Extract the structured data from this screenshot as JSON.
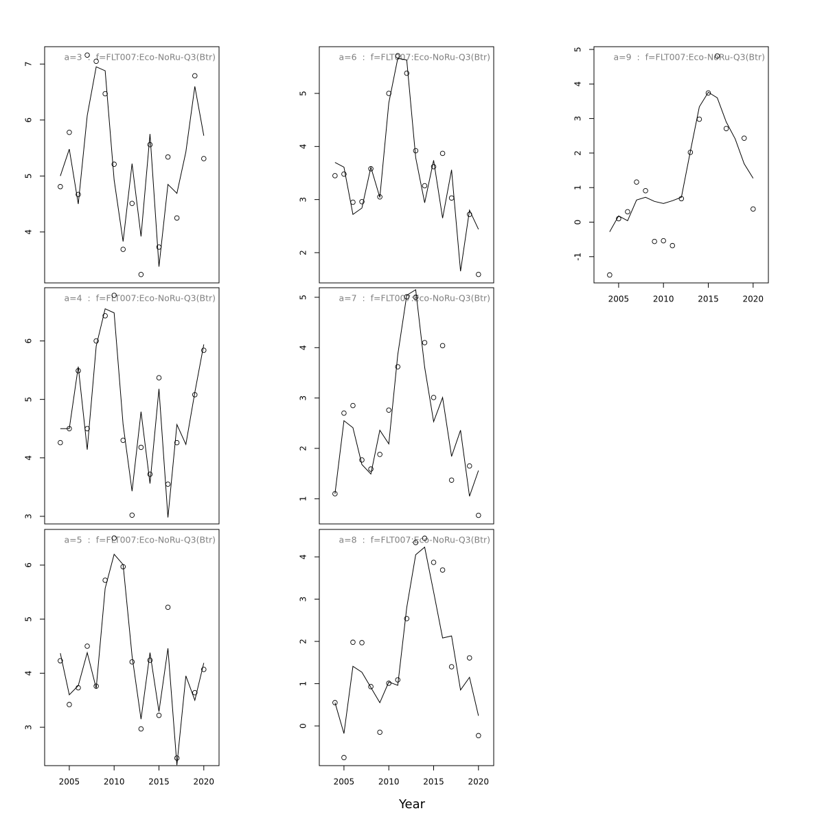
{
  "x_label": "Year",
  "chart_data": [
    {
      "type": "line",
      "title": "a=3  :  f=FLT007:Eco-NoRu-Q3(Btr)",
      "x": [
        2004,
        2005,
        2006,
        2007,
        2008,
        2009,
        2010,
        2011,
        2012,
        2013,
        2014,
        2015,
        2016,
        2017,
        2018,
        2019,
        2020
      ],
      "series": [
        {
          "style": "line",
          "color": "#000000",
          "values": [
            5.0,
            5.48,
            4.5,
            6.08,
            6.95,
            6.88,
            4.93,
            3.83,
            5.22,
            3.92,
            5.75,
            3.38,
            4.85,
            4.69,
            5.43,
            6.6,
            5.72
          ]
        },
        {
          "style": "points",
          "color": "#000000",
          "values": [
            4.81,
            5.78,
            4.67,
            7.16,
            7.05,
            6.47,
            5.21,
            3.69,
            4.51,
            3.24,
            5.56,
            3.73,
            5.34,
            4.25,
            null,
            6.79,
            5.31
          ]
        }
      ],
      "xlim": [
        2002.25,
        2021.7
      ],
      "xticks": [
        2005,
        2010,
        2015,
        2020
      ],
      "show_xaxis": false,
      "ylim": [
        3.09,
        7.31
      ],
      "yticks": [
        4,
        5,
        6,
        7
      ]
    },
    {
      "type": "line",
      "title": "a=4  :  f=FLT007:Eco-NoRu-Q3(Btr)",
      "x": [
        2004,
        2005,
        2006,
        2007,
        2008,
        2009,
        2010,
        2011,
        2012,
        2013,
        2014,
        2015,
        2016,
        2017,
        2018,
        2019,
        2020
      ],
      "series": [
        {
          "style": "line",
          "color": "#000000",
          "values": [
            4.5,
            4.5,
            5.56,
            4.14,
            5.91,
            6.55,
            6.48,
            4.57,
            3.43,
            4.79,
            3.56,
            5.18,
            2.98,
            4.57,
            4.23,
            5.12,
            5.94
          ]
        },
        {
          "style": "points",
          "color": "#000000",
          "values": [
            4.26,
            4.5,
            5.49,
            4.5,
            6.0,
            6.43,
            6.78,
            4.3,
            3.02,
            4.18,
            3.72,
            5.37,
            3.55,
            4.26,
            null,
            5.08,
            5.84
          ]
        }
      ],
      "xlim": [
        2002.25,
        2021.7
      ],
      "xticks": [
        2005,
        2010,
        2015,
        2020
      ],
      "show_xaxis": false,
      "ylim": [
        2.87,
        6.91
      ],
      "yticks": [
        3,
        4,
        5,
        6
      ]
    },
    {
      "type": "line",
      "title": "a=5  :  f=FLT007:Eco-NoRu-Q3(Btr)",
      "x": [
        2004,
        2005,
        2006,
        2007,
        2008,
        2009,
        2010,
        2011,
        2012,
        2013,
        2014,
        2015,
        2016,
        2017,
        2018,
        2019,
        2020
      ],
      "series": [
        {
          "style": "line",
          "color": "#000000",
          "values": [
            4.37,
            3.6,
            3.77,
            4.38,
            3.72,
            5.57,
            6.2,
            6.01,
            4.32,
            3.15,
            4.38,
            3.29,
            4.46,
            2.3,
            3.95,
            3.5,
            4.19
          ]
        },
        {
          "style": "points",
          "color": "#000000",
          "values": [
            4.23,
            3.42,
            3.73,
            4.5,
            3.76,
            5.72,
            6.5,
            5.97,
            4.21,
            2.97,
            4.24,
            3.22,
            5.22,
            2.43,
            null,
            3.64,
            4.07
          ]
        }
      ],
      "xlim": [
        2002.25,
        2021.7
      ],
      "xticks": [
        2005,
        2010,
        2015,
        2020
      ],
      "show_xaxis": true,
      "ylim": [
        2.29,
        6.66
      ],
      "yticks": [
        3,
        4,
        5,
        6
      ]
    },
    {
      "type": "line",
      "title": "a=6  :  f=FLT007:Eco-NoRu-Q3(Btr)",
      "x": [
        2004,
        2005,
        2006,
        2007,
        2008,
        2009,
        2010,
        2011,
        2012,
        2013,
        2014,
        2015,
        2016,
        2017,
        2018,
        2019,
        2020
      ],
      "series": [
        {
          "style": "line",
          "color": "#000000",
          "values": [
            3.7,
            3.61,
            2.72,
            2.84,
            3.61,
            3.04,
            4.82,
            5.66,
            5.63,
            3.79,
            2.94,
            3.74,
            2.65,
            3.56,
            1.65,
            2.8,
            2.44
          ]
        },
        {
          "style": "points",
          "color": "#000000",
          "values": [
            3.45,
            3.48,
            2.95,
            2.96,
            3.58,
            3.05,
            5.0,
            5.71,
            5.38,
            3.92,
            3.26,
            3.62,
            3.87,
            3.03,
            null,
            2.72,
            1.59
          ]
        }
      ],
      "xlim": [
        2002.25,
        2021.7
      ],
      "xticks": [
        2005,
        2010,
        2015,
        2020
      ],
      "show_xaxis": false,
      "ylim": [
        1.43,
        5.88
      ],
      "yticks": [
        2,
        3,
        4,
        5
      ]
    },
    {
      "type": "line",
      "title": "a=7  :  f=FLT007:Eco-NoRu-Q3(Btr)",
      "x": [
        2004,
        2005,
        2006,
        2007,
        2008,
        2009,
        2010,
        2011,
        2012,
        2013,
        2014,
        2015,
        2016,
        2017,
        2018,
        2019,
        2020
      ],
      "series": [
        {
          "style": "line",
          "color": "#000000",
          "values": [
            1.1,
            2.55,
            2.41,
            1.68,
            1.49,
            2.36,
            2.09,
            3.86,
            5.04,
            5.15,
            3.61,
            2.53,
            3.01,
            1.84,
            2.36,
            1.05,
            1.56
          ]
        },
        {
          "style": "points",
          "color": "#000000",
          "values": [
            1.1,
            2.7,
            2.85,
            1.77,
            1.59,
            1.88,
            2.76,
            3.62,
            5.01,
            5.0,
            4.1,
            3.01,
            4.04,
            1.37,
            null,
            1.65,
            0.67
          ]
        }
      ],
      "xlim": [
        2002.25,
        2021.7
      ],
      "xticks": [
        2005,
        2010,
        2015,
        2020
      ],
      "show_xaxis": false,
      "ylim": [
        0.5,
        5.19
      ],
      "yticks": [
        1,
        2,
        3,
        4,
        5
      ]
    },
    {
      "type": "line",
      "title": "a=8  :  f=FLT007:Eco-NoRu-Q3(Btr)",
      "x": [
        2004,
        2005,
        2006,
        2007,
        2008,
        2009,
        2010,
        2011,
        2012,
        2013,
        2014,
        2015,
        2016,
        2017,
        2018,
        2019,
        2020
      ],
      "series": [
        {
          "style": "line",
          "color": "#000000",
          "values": [
            0.55,
            -0.18,
            1.41,
            1.27,
            0.91,
            0.55,
            1.04,
            0.96,
            2.8,
            4.05,
            4.23,
            3.17,
            2.08,
            2.13,
            0.85,
            1.15,
            0.24
          ]
        },
        {
          "style": "points",
          "color": "#000000",
          "values": [
            0.55,
            -0.75,
            1.98,
            1.97,
            0.93,
            -0.15,
            1.01,
            1.09,
            2.54,
            4.34,
            4.44,
            3.87,
            3.69,
            1.4,
            null,
            1.61,
            -0.23
          ]
        }
      ],
      "xlim": [
        2002.25,
        2021.7
      ],
      "xticks": [
        2005,
        2010,
        2015,
        2020
      ],
      "show_xaxis": true,
      "ylim": [
        -0.94,
        4.65
      ],
      "yticks": [
        0,
        1,
        2,
        3,
        4
      ]
    },
    {
      "type": "line",
      "title": "a=9  :  f=FLT007:Eco-NoRu-Q3(Btr)",
      "x": [
        2004,
        2005,
        2006,
        2007,
        2008,
        2009,
        2010,
        2011,
        2012,
        2013,
        2014,
        2015,
        2016,
        2017,
        2018,
        2019,
        2020
      ],
      "series": [
        {
          "style": "line",
          "color": "#000000",
          "values": [
            -0.28,
            0.18,
            0.04,
            0.64,
            0.72,
            0.6,
            0.54,
            0.62,
            0.72,
            2.05,
            3.34,
            3.76,
            3.6,
            2.9,
            2.41,
            1.69,
            1.27
          ]
        },
        {
          "style": "points",
          "color": "#000000",
          "values": [
            -1.53,
            0.1,
            0.3,
            1.16,
            0.91,
            -0.56,
            -0.54,
            -0.68,
            0.68,
            2.02,
            2.98,
            3.74,
            4.81,
            2.71,
            null,
            2.43,
            0.38
          ]
        }
      ],
      "xlim": [
        2002.25,
        2021.7
      ],
      "xticks": [
        2005,
        2010,
        2015,
        2020
      ],
      "show_xaxis": true,
      "ylim": [
        -1.76,
        5.08
      ],
      "yticks": [
        -1,
        0,
        1,
        2,
        3,
        4,
        5
      ]
    }
  ]
}
